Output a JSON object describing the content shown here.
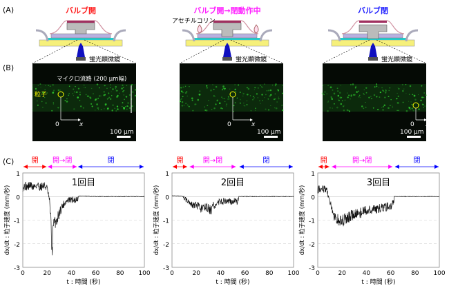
{
  "panel_labels": {
    "a": "(A)",
    "b": "(B)",
    "c": "(C)"
  },
  "diagrams": [
    {
      "title": "バルブ開",
      "title_color": "#ff2020",
      "microscope": "蛍光顕微鏡"
    },
    {
      "title": "バルブ開→閉動作中",
      "title_color": "#ff20ff",
      "microscope": "蛍光顕微鏡",
      "chemical": "アセチルコリン"
    },
    {
      "title": "バルブ閉",
      "title_color": "#2020ff",
      "microscope": "蛍光顕微鏡"
    }
  ],
  "micrographs": [
    {
      "channel_label": "マイクロ流路 (200 µm幅)",
      "particle_label": "粒子",
      "origin": "0",
      "axis": "x",
      "scale": "100 µm"
    },
    {
      "origin": "0",
      "axis": "x",
      "scale": "100 µm"
    },
    {
      "origin": "0",
      "axis": "x",
      "scale": "100 µm"
    }
  ],
  "phase_labels": {
    "open": "開",
    "closing": "開→閉",
    "closed": "閉"
  },
  "phase_colors": {
    "open": "#ff0000",
    "closing": "#ff00ff",
    "closed": "#0000ff"
  },
  "chart_data": [
    {
      "type": "line",
      "title": "1回目",
      "xlabel": "t : 時間 (秒)",
      "ylabel": "dx/dt : 粒子速度 (mm/秒)",
      "xlim": [
        0,
        100
      ],
      "ylim": [
        -3,
        1
      ],
      "xticks": [
        "0",
        "20",
        "40",
        "60",
        "80",
        "100"
      ],
      "yticks": [
        "1",
        "0",
        "-1",
        "-2",
        "-3"
      ],
      "phases": {
        "open": [
          0,
          20
        ],
        "closing": [
          20,
          45
        ],
        "closed": [
          45,
          100
        ]
      },
      "x": [
        0,
        2,
        4,
        6,
        8,
        10,
        12,
        14,
        16,
        18,
        20,
        22,
        23,
        24,
        25,
        26,
        28,
        30,
        32,
        34,
        36,
        38,
        40,
        42,
        44,
        45,
        46,
        60,
        80,
        100
      ],
      "y": [
        0.4,
        0.45,
        0.4,
        0.5,
        0.4,
        0.45,
        0.5,
        0.4,
        0.45,
        0.45,
        0.35,
        -0.2,
        -0.9,
        -2.4,
        -1.3,
        -1.1,
        -1.0,
        -0.7,
        -0.45,
        -0.3,
        -0.2,
        -0.15,
        -0.15,
        -0.15,
        -0.12,
        -0.1,
        0.02,
        0,
        0,
        0
      ]
    },
    {
      "type": "line",
      "title": "2回目",
      "xlabel": "t : 時間 (秒)",
      "ylabel": "dx/dt : 粒子速度 (mm/秒)",
      "xlim": [
        0,
        100
      ],
      "ylim": [
        -3,
        1
      ],
      "xticks": [
        "0",
        "20",
        "40",
        "60",
        "80",
        "100"
      ],
      "yticks": [
        "1",
        "0",
        "-1",
        "-2",
        "-3"
      ],
      "phases": {
        "open": [
          0,
          13
        ],
        "closing": [
          14,
          53
        ],
        "closed": [
          55,
          100
        ]
      },
      "x": [
        0,
        5,
        9,
        10,
        12,
        14,
        16,
        18,
        20,
        22,
        24,
        26,
        28,
        30,
        32,
        34,
        36,
        38,
        40,
        44,
        48,
        52,
        54,
        55,
        60,
        80,
        100
      ],
      "y": [
        0.03,
        0.03,
        0,
        -0.1,
        -0.1,
        -0.2,
        -0.3,
        -0.35,
        -0.4,
        -0.45,
        -0.55,
        -0.5,
        -0.45,
        -0.5,
        -0.6,
        -0.4,
        -0.35,
        -0.25,
        -0.2,
        -0.2,
        -0.2,
        -0.22,
        -0.2,
        0,
        0,
        0,
        0
      ]
    },
    {
      "type": "line",
      "title": "3回目",
      "xlabel": "t : 時間 (秒)",
      "ylabel": "dx/dt : 粒子速度 (mm/秒)",
      "xlim": [
        0,
        100
      ],
      "ylim": [
        -3,
        1
      ],
      "xticks": [
        "0",
        "20",
        "40",
        "60",
        "80",
        "100"
      ],
      "yticks": [
        "1",
        "0",
        "-1",
        "-2",
        "-3"
      ],
      "phases": {
        "open": [
          0,
          10
        ],
        "closing": [
          11,
          62
        ],
        "closed": [
          63,
          100
        ]
      },
      "x": [
        0,
        4,
        7,
        9,
        11,
        13,
        15,
        17,
        20,
        22,
        24,
        26,
        30,
        35,
        40,
        45,
        50,
        55,
        60,
        62,
        63,
        80,
        100
      ],
      "y": [
        0.3,
        0.35,
        0.3,
        0,
        -0.4,
        -0.8,
        -1.0,
        -1.0,
        -1.05,
        -1.0,
        -0.9,
        -0.85,
        -0.75,
        -0.7,
        -0.6,
        -0.55,
        -0.5,
        -0.45,
        -0.4,
        -0.3,
        0,
        0,
        0
      ]
    }
  ]
}
